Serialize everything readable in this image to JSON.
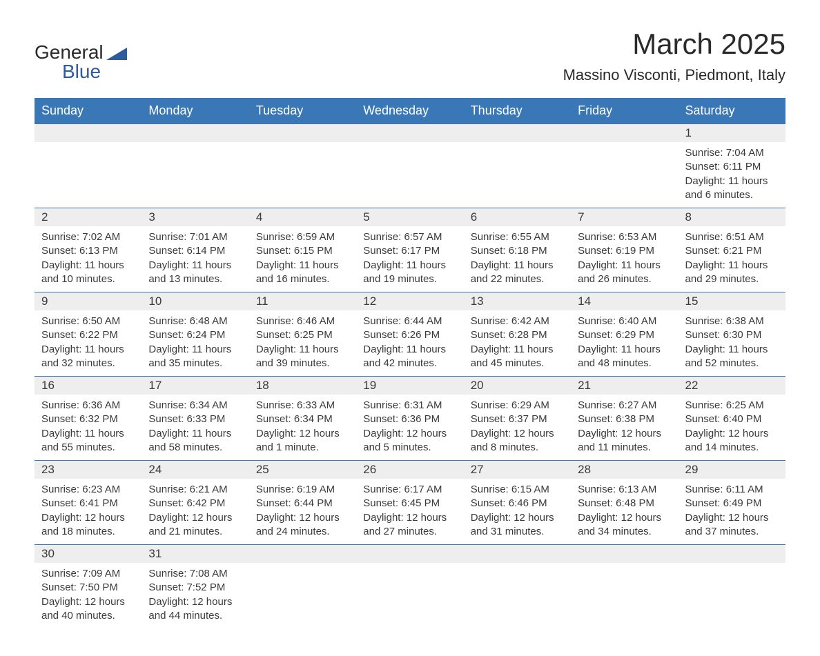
{
  "logo": {
    "line1": "General",
    "line2": "Blue",
    "icon_fill": "#2e5c9a"
  },
  "header": {
    "month_title": "March 2025",
    "location": "Massino Visconti, Piedmont, Italy"
  },
  "colors": {
    "header_bg": "#3a77b7",
    "header_text": "#ffffff",
    "day_bg": "#eeeeee",
    "text": "#3a3a3a",
    "border": "#3a77b7",
    "page_bg": "#ffffff"
  },
  "typography": {
    "month_title_fontsize": 42,
    "location_fontsize": 22,
    "weekday_fontsize": 18,
    "daynum_fontsize": 17,
    "content_fontsize": 15
  },
  "layout": {
    "columns": 7,
    "rows": 6
  },
  "weekdays": [
    "Sunday",
    "Monday",
    "Tuesday",
    "Wednesday",
    "Thursday",
    "Friday",
    "Saturday"
  ],
  "weeks": [
    [
      null,
      null,
      null,
      null,
      null,
      null,
      {
        "day": "1",
        "sunrise": "Sunrise: 7:04 AM",
        "sunset": "Sunset: 6:11 PM",
        "daylight": "Daylight: 11 hours and 6 minutes."
      }
    ],
    [
      {
        "day": "2",
        "sunrise": "Sunrise: 7:02 AM",
        "sunset": "Sunset: 6:13 PM",
        "daylight": "Daylight: 11 hours and 10 minutes."
      },
      {
        "day": "3",
        "sunrise": "Sunrise: 7:01 AM",
        "sunset": "Sunset: 6:14 PM",
        "daylight": "Daylight: 11 hours and 13 minutes."
      },
      {
        "day": "4",
        "sunrise": "Sunrise: 6:59 AM",
        "sunset": "Sunset: 6:15 PM",
        "daylight": "Daylight: 11 hours and 16 minutes."
      },
      {
        "day": "5",
        "sunrise": "Sunrise: 6:57 AM",
        "sunset": "Sunset: 6:17 PM",
        "daylight": "Daylight: 11 hours and 19 minutes."
      },
      {
        "day": "6",
        "sunrise": "Sunrise: 6:55 AM",
        "sunset": "Sunset: 6:18 PM",
        "daylight": "Daylight: 11 hours and 22 minutes."
      },
      {
        "day": "7",
        "sunrise": "Sunrise: 6:53 AM",
        "sunset": "Sunset: 6:19 PM",
        "daylight": "Daylight: 11 hours and 26 minutes."
      },
      {
        "day": "8",
        "sunrise": "Sunrise: 6:51 AM",
        "sunset": "Sunset: 6:21 PM",
        "daylight": "Daylight: 11 hours and 29 minutes."
      }
    ],
    [
      {
        "day": "9",
        "sunrise": "Sunrise: 6:50 AM",
        "sunset": "Sunset: 6:22 PM",
        "daylight": "Daylight: 11 hours and 32 minutes."
      },
      {
        "day": "10",
        "sunrise": "Sunrise: 6:48 AM",
        "sunset": "Sunset: 6:24 PM",
        "daylight": "Daylight: 11 hours and 35 minutes."
      },
      {
        "day": "11",
        "sunrise": "Sunrise: 6:46 AM",
        "sunset": "Sunset: 6:25 PM",
        "daylight": "Daylight: 11 hours and 39 minutes."
      },
      {
        "day": "12",
        "sunrise": "Sunrise: 6:44 AM",
        "sunset": "Sunset: 6:26 PM",
        "daylight": "Daylight: 11 hours and 42 minutes."
      },
      {
        "day": "13",
        "sunrise": "Sunrise: 6:42 AM",
        "sunset": "Sunset: 6:28 PM",
        "daylight": "Daylight: 11 hours and 45 minutes."
      },
      {
        "day": "14",
        "sunrise": "Sunrise: 6:40 AM",
        "sunset": "Sunset: 6:29 PM",
        "daylight": "Daylight: 11 hours and 48 minutes."
      },
      {
        "day": "15",
        "sunrise": "Sunrise: 6:38 AM",
        "sunset": "Sunset: 6:30 PM",
        "daylight": "Daylight: 11 hours and 52 minutes."
      }
    ],
    [
      {
        "day": "16",
        "sunrise": "Sunrise: 6:36 AM",
        "sunset": "Sunset: 6:32 PM",
        "daylight": "Daylight: 11 hours and 55 minutes."
      },
      {
        "day": "17",
        "sunrise": "Sunrise: 6:34 AM",
        "sunset": "Sunset: 6:33 PM",
        "daylight": "Daylight: 11 hours and 58 minutes."
      },
      {
        "day": "18",
        "sunrise": "Sunrise: 6:33 AM",
        "sunset": "Sunset: 6:34 PM",
        "daylight": "Daylight: 12 hours and 1 minute."
      },
      {
        "day": "19",
        "sunrise": "Sunrise: 6:31 AM",
        "sunset": "Sunset: 6:36 PM",
        "daylight": "Daylight: 12 hours and 5 minutes."
      },
      {
        "day": "20",
        "sunrise": "Sunrise: 6:29 AM",
        "sunset": "Sunset: 6:37 PM",
        "daylight": "Daylight: 12 hours and 8 minutes."
      },
      {
        "day": "21",
        "sunrise": "Sunrise: 6:27 AM",
        "sunset": "Sunset: 6:38 PM",
        "daylight": "Daylight: 12 hours and 11 minutes."
      },
      {
        "day": "22",
        "sunrise": "Sunrise: 6:25 AM",
        "sunset": "Sunset: 6:40 PM",
        "daylight": "Daylight: 12 hours and 14 minutes."
      }
    ],
    [
      {
        "day": "23",
        "sunrise": "Sunrise: 6:23 AM",
        "sunset": "Sunset: 6:41 PM",
        "daylight": "Daylight: 12 hours and 18 minutes."
      },
      {
        "day": "24",
        "sunrise": "Sunrise: 6:21 AM",
        "sunset": "Sunset: 6:42 PM",
        "daylight": "Daylight: 12 hours and 21 minutes."
      },
      {
        "day": "25",
        "sunrise": "Sunrise: 6:19 AM",
        "sunset": "Sunset: 6:44 PM",
        "daylight": "Daylight: 12 hours and 24 minutes."
      },
      {
        "day": "26",
        "sunrise": "Sunrise: 6:17 AM",
        "sunset": "Sunset: 6:45 PM",
        "daylight": "Daylight: 12 hours and 27 minutes."
      },
      {
        "day": "27",
        "sunrise": "Sunrise: 6:15 AM",
        "sunset": "Sunset: 6:46 PM",
        "daylight": "Daylight: 12 hours and 31 minutes."
      },
      {
        "day": "28",
        "sunrise": "Sunrise: 6:13 AM",
        "sunset": "Sunset: 6:48 PM",
        "daylight": "Daylight: 12 hours and 34 minutes."
      },
      {
        "day": "29",
        "sunrise": "Sunrise: 6:11 AM",
        "sunset": "Sunset: 6:49 PM",
        "daylight": "Daylight: 12 hours and 37 minutes."
      }
    ],
    [
      {
        "day": "30",
        "sunrise": "Sunrise: 7:09 AM",
        "sunset": "Sunset: 7:50 PM",
        "daylight": "Daylight: 12 hours and 40 minutes."
      },
      {
        "day": "31",
        "sunrise": "Sunrise: 7:08 AM",
        "sunset": "Sunset: 7:52 PM",
        "daylight": "Daylight: 12 hours and 44 minutes."
      },
      null,
      null,
      null,
      null,
      null
    ]
  ]
}
